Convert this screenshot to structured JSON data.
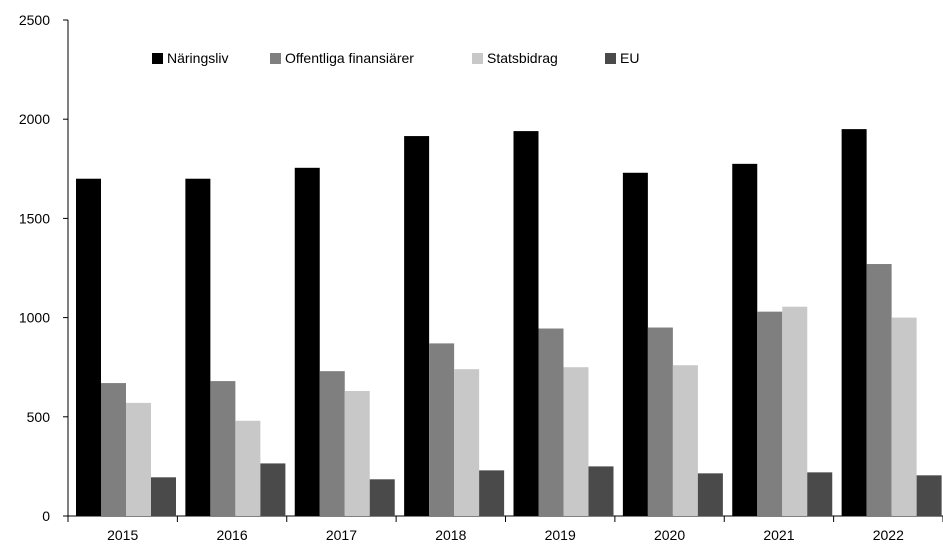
{
  "chart_data": {
    "type": "bar",
    "title": "",
    "xlabel": "",
    "ylabel": "",
    "categories": [
      "2015",
      "2016",
      "2017",
      "2018",
      "2019",
      "2020",
      "2021",
      "2022"
    ],
    "ylim": [
      0,
      2500
    ],
    "yticks": [
      "0",
      "500",
      "1000",
      "1500",
      "2000",
      "2500"
    ],
    "grid": false,
    "legend_position": "top-left",
    "series": [
      {
        "name": "Näringsliv",
        "color": "#000000",
        "values": [
          1700,
          1700,
          1755,
          1915,
          1940,
          1730,
          1775,
          1950
        ]
      },
      {
        "name": "Offentliga finansiärer",
        "color": "#7f7f7f",
        "values": [
          670,
          680,
          730,
          870,
          945,
          950,
          1030,
          1270
        ]
      },
      {
        "name": "Statsbidrag",
        "color": "#c8c8c8",
        "values": [
          570,
          480,
          630,
          740,
          750,
          760,
          1055,
          1000
        ]
      },
      {
        "name": "EU",
        "color": "#4a4a4a",
        "values": [
          195,
          265,
          185,
          230,
          250,
          215,
          220,
          205
        ]
      }
    ]
  }
}
